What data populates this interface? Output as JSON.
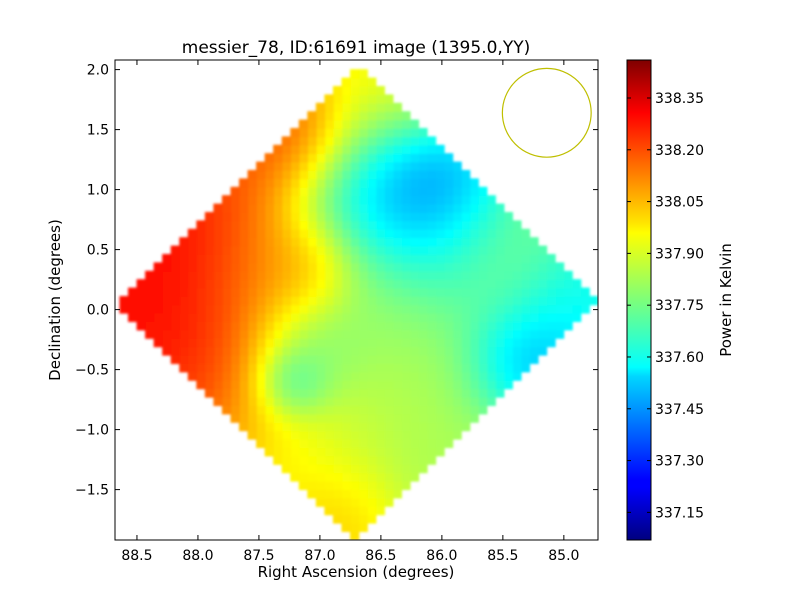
{
  "chart_data": {
    "type": "heatmap",
    "title": "messier_78, ID:61691 image (1395.0,YY)",
    "xlabel": "Right Ascension (degrees)",
    "ylabel": "Declination (degrees)",
    "xlim": [
      88.68,
      84.72
    ],
    "ylim": [
      -1.92,
      2.08
    ],
    "x_ticks": [
      {
        "value": 88.5,
        "label": "88.5"
      },
      {
        "value": 88.0,
        "label": "88.0"
      },
      {
        "value": 87.5,
        "label": "87.5"
      },
      {
        "value": 87.0,
        "label": "87.0"
      },
      {
        "value": 86.5,
        "label": "86.5"
      },
      {
        "value": 86.0,
        "label": "86.0"
      },
      {
        "value": 85.5,
        "label": "85.5"
      },
      {
        "value": 85.0,
        "label": "85.0"
      }
    ],
    "y_ticks": [
      {
        "value": 2.0,
        "label": "2.0"
      },
      {
        "value": 1.5,
        "label": "1.5"
      },
      {
        "value": 1.0,
        "label": "1.0"
      },
      {
        "value": 0.5,
        "label": "0.5"
      },
      {
        "value": 0.0,
        "label": "0.0"
      },
      {
        "value": -0.5,
        "label": "−0.5"
      },
      {
        "value": -1.0,
        "label": "−1.0"
      },
      {
        "value": -1.5,
        "label": "−1.5"
      }
    ],
    "colorbar": {
      "label": "Power in Kelvin",
      "colormap": "jet",
      "range": [
        337.07,
        338.46
      ],
      "ticks": [
        {
          "value": 338.35,
          "label": "338.35"
        },
        {
          "value": 338.2,
          "label": "338.20"
        },
        {
          "value": 338.05,
          "label": "338.05"
        },
        {
          "value": 337.9,
          "label": "337.90"
        },
        {
          "value": 337.75,
          "label": "337.75"
        },
        {
          "value": 337.6,
          "label": "337.60"
        },
        {
          "value": 337.45,
          "label": "337.45"
        },
        {
          "value": 337.3,
          "label": "337.30"
        },
        {
          "value": 337.15,
          "label": "337.15"
        }
      ]
    },
    "footprint": {
      "shape": "diamond",
      "center_ra": 86.7,
      "center_dec": 0.06,
      "half_width_ra": 1.98,
      "half_height_dec": 1.98
    },
    "features": [
      {
        "ra": 88.55,
        "dec": 0.05,
        "value": 338.33,
        "sigma": 0.7
      },
      {
        "ra": 88.3,
        "dec": 0.6,
        "value": 338.3,
        "sigma": 0.5
      },
      {
        "ra": 88.2,
        "dec": -0.6,
        "value": 338.25,
        "sigma": 0.5
      },
      {
        "ra": 87.25,
        "dec": 1.55,
        "value": 338.3,
        "sigma": 0.3
      },
      {
        "ra": 87.6,
        "dec": 1.3,
        "value": 338.2,
        "sigma": 0.4
      },
      {
        "ra": 87.5,
        "dec": 0.3,
        "value": 338.1,
        "sigma": 0.4
      },
      {
        "ra": 87.1,
        "dec": 0.3,
        "value": 338.15,
        "sigma": 0.25
      },
      {
        "ra": 86.7,
        "dec": -0.1,
        "value": 337.9,
        "sigma": 0.5
      },
      {
        "ra": 86.6,
        "dec": 1.9,
        "value": 338.0,
        "sigma": 0.4
      },
      {
        "ra": 86.6,
        "dec": 1.2,
        "value": 337.65,
        "sigma": 0.5
      },
      {
        "ra": 86.2,
        "dec": 0.95,
        "value": 337.2,
        "sigma": 0.32
      },
      {
        "ra": 86.4,
        "dec": 0.6,
        "value": 337.55,
        "sigma": 0.45
      },
      {
        "ra": 85.9,
        "dec": 0.55,
        "value": 337.6,
        "sigma": 0.4
      },
      {
        "ra": 85.5,
        "dec": 0.4,
        "value": 337.8,
        "sigma": 0.35
      },
      {
        "ra": 85.0,
        "dec": 0.1,
        "value": 337.55,
        "sigma": 0.35
      },
      {
        "ra": 85.35,
        "dec": -0.45,
        "value": 337.4,
        "sigma": 0.32
      },
      {
        "ra": 86.3,
        "dec": -0.2,
        "value": 337.75,
        "sigma": 0.45
      },
      {
        "ra": 87.0,
        "dec": -0.3,
        "value": 337.6,
        "sigma": 0.3
      },
      {
        "ra": 87.2,
        "dec": -0.6,
        "value": 337.45,
        "sigma": 0.18
      },
      {
        "ra": 86.4,
        "dec": -0.9,
        "value": 337.85,
        "sigma": 0.55
      },
      {
        "ra": 87.3,
        "dec": -1.0,
        "value": 337.95,
        "sigma": 0.5
      },
      {
        "ra": 86.8,
        "dec": -1.7,
        "value": 338.05,
        "sigma": 0.3
      },
      {
        "ra": 86.0,
        "dec": -1.2,
        "value": 337.8,
        "sigma": 0.5
      }
    ],
    "beam_circle": {
      "center_ra": 85.14,
      "center_dec": 1.64,
      "radius_deg": 0.37,
      "color": "#bfbf00"
    }
  }
}
